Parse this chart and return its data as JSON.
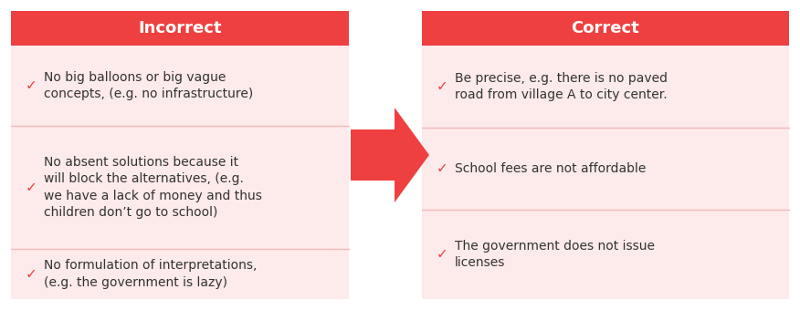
{
  "header_color": "#EE4040",
  "header_text_color": "#FFFFFF",
  "cell_bg_color": "#FDEAEA",
  "divider_color": "#F0BABA",
  "text_color": "#333333",
  "check_color": "#EE4040",
  "arrow_color": "#EE4040",
  "incorrect_header": "Incorrect",
  "correct_header": "Correct",
  "incorrect_items": [
    "No big balloons or big vague\nconcepts, (e.g. no infrastructure)",
    "No absent solutions because it\nwill block the alternatives, (e.g.\nwe have a lack of money and thus\nchildren don’t go to school)",
    "No formulation of interpretations,\n(e.g. the government is lazy)"
  ],
  "correct_items": [
    "Be precise, e.g. there is no paved\nroad from village A to city center.",
    "School fees are not affordable",
    "The government does not issue\nlicenses"
  ],
  "fig_width": 8.76,
  "fig_height": 3.4,
  "dpi": 100
}
